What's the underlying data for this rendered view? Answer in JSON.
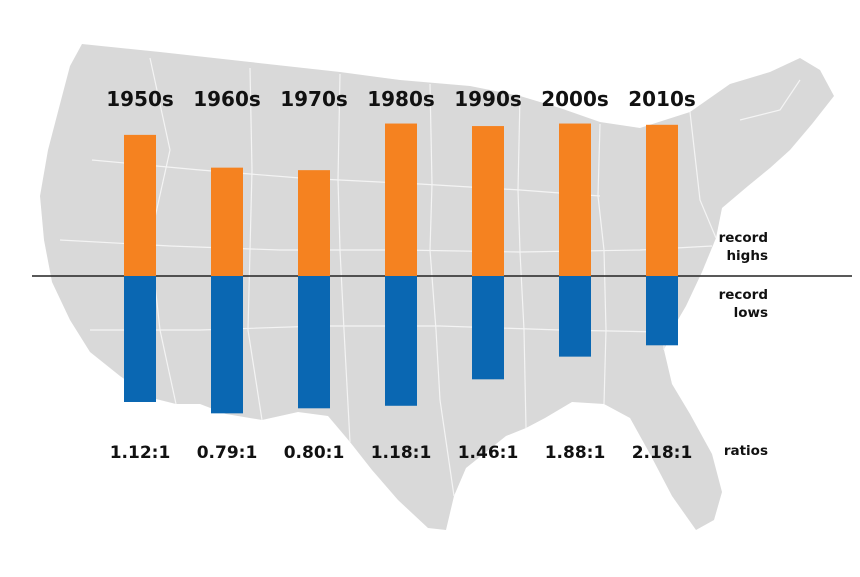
{
  "chart_data": {
    "type": "bar",
    "title": "",
    "categories": [
      "1950s",
      "1960s",
      "1970s",
      "1980s",
      "1990s",
      "2000s",
      "2010s"
    ],
    "series": [
      {
        "name": "record highs",
        "values": [
          1.12,
          0.86,
          0.84,
          1.21,
          1.19,
          1.21,
          1.2
        ]
      },
      {
        "name": "record lows",
        "values": [
          1.0,
          1.09,
          1.05,
          1.03,
          0.82,
          0.64,
          0.55
        ]
      }
    ],
    "ratios": [
      "1.12:1",
      "0.79:1",
      "0.80:1",
      "1.18:1",
      "1.46:1",
      "1.88:1",
      "2.18:1"
    ],
    "labels": {
      "highs": [
        "record",
        "highs"
      ],
      "lows": [
        "record",
        "lows"
      ],
      "ratios": "ratios"
    },
    "ylim": [
      -1.25,
      1.25
    ],
    "grid": false,
    "colors": {
      "highs": "#f58220",
      "lows": "#0a67b2",
      "baseline": "#222222",
      "map": "#d9d9d9",
      "map_border": "#f4f4f4"
    }
  }
}
